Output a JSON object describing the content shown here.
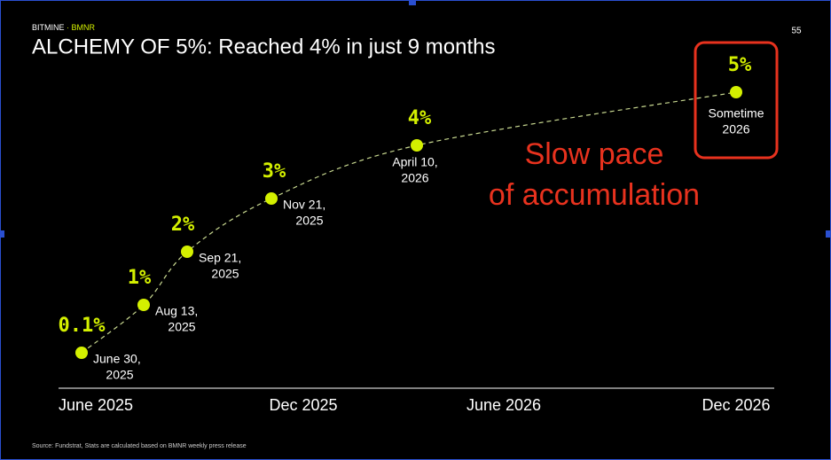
{
  "brand": "BITMINE",
  "brand_sub": "BMNR",
  "page_number": "55",
  "chart_data": {
    "type": "line",
    "title": "ALCHEMY OF 5%: Reached 4% in just 9 months",
    "x": [
      [
        "June 30,",
        "2025"
      ],
      [
        "Aug 13,",
        "2025"
      ],
      [
        "Sep 21,",
        "2025"
      ],
      [
        "Nov 21,",
        "2025"
      ],
      [
        "April 10,",
        "2026"
      ],
      [
        "Sometime",
        "2026"
      ]
    ],
    "values": [
      0.1,
      1,
      2,
      3,
      4,
      5
    ],
    "value_labels": [
      "0.1%",
      "1%",
      "2%",
      "3%",
      "4%",
      "5%"
    ],
    "color": "#d4f000",
    "xticks": [
      "June 2025",
      "Dec 2025",
      "June 2026",
      "Dec 2026"
    ],
    "annotation": [
      "Slow pace",
      "of accumulation"
    ],
    "source": "Source: Fundstrat, Stats are calculated based on BMNR weekly press release"
  }
}
